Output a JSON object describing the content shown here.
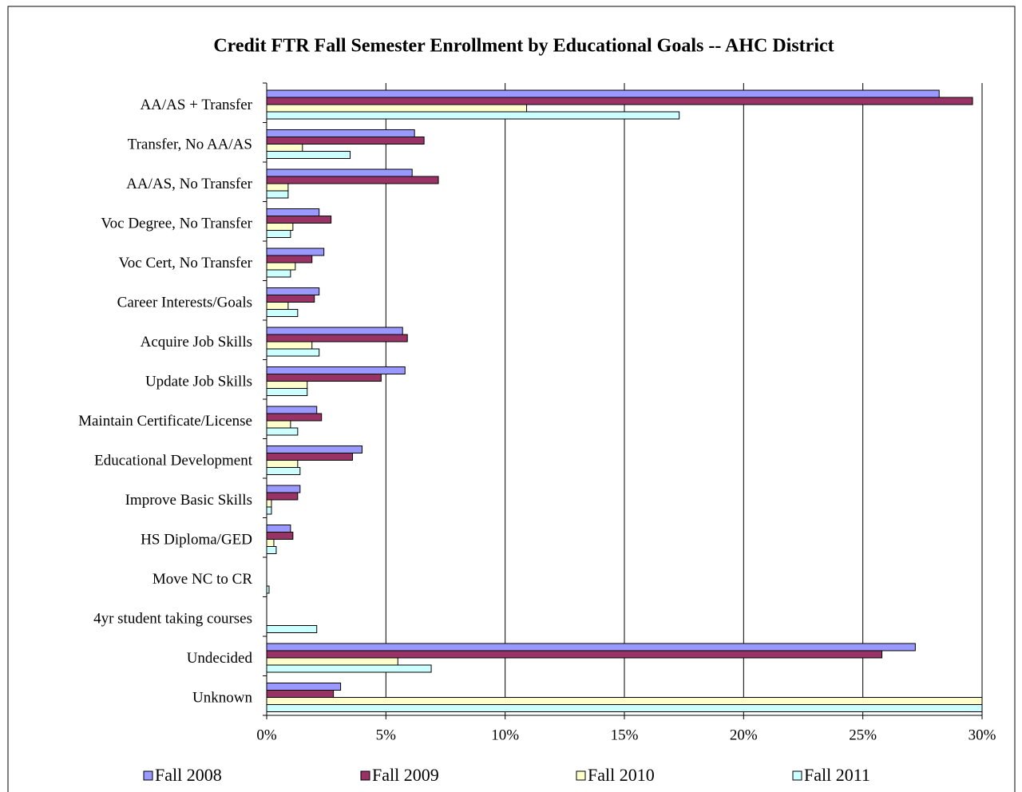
{
  "chart_data": {
    "type": "bar",
    "orientation": "horizontal",
    "title": "Credit FTR Fall Semester Enrollment by Educational Goals -- AHC District",
    "categories": [
      "AA/AS + Transfer",
      "Transfer, No AA/AS",
      "AA/AS, No Transfer",
      "Voc Degree, No Transfer",
      "Voc Cert, No Transfer",
      "Career Interests/Goals",
      "Acquire Job Skills",
      "Update Job Skills",
      "Maintain Certificate/License",
      "Educational Development",
      "Improve Basic Skills",
      "HS Diploma/GED",
      "Move NC to CR",
      "4yr student taking courses",
      "Undecided",
      "Unknown"
    ],
    "series": [
      {
        "name": "Fall 2008",
        "color": "#9999ff",
        "values": [
          28.2,
          6.2,
          6.1,
          2.2,
          2.4,
          2.2,
          5.7,
          5.8,
          2.1,
          4.0,
          1.4,
          1.0,
          0,
          0,
          27.2,
          3.1
        ]
      },
      {
        "name": "Fall 2009",
        "color": "#993366",
        "values": [
          29.6,
          6.6,
          7.2,
          2.7,
          1.9,
          2.0,
          5.9,
          4.8,
          2.3,
          3.6,
          1.3,
          1.1,
          0,
          0,
          25.8,
          2.8
        ]
      },
      {
        "name": "Fall 2010",
        "color": "#ffffcc",
        "values": [
          10.9,
          1.5,
          0.9,
          1.1,
          1.2,
          0.9,
          1.9,
          1.7,
          1.0,
          1.3,
          0.2,
          0.3,
          0,
          0,
          5.5,
          30
        ]
      },
      {
        "name": "Fall 2011",
        "color": "#ccffff",
        "values": [
          17.3,
          3.5,
          0.9,
          1.0,
          1.0,
          1.3,
          2.2,
          1.7,
          1.3,
          1.4,
          0.2,
          0.4,
          0.1,
          2.1,
          6.9,
          30
        ]
      }
    ],
    "xlim": [
      0,
      30
    ],
    "xticks": [
      {
        "value": 0,
        "label": "0%"
      },
      {
        "value": 5,
        "label": "5%"
      },
      {
        "value": 10,
        "label": "10%"
      },
      {
        "value": 15,
        "label": "15%"
      },
      {
        "value": 20,
        "label": "20%"
      },
      {
        "value": 25,
        "label": "25%"
      },
      {
        "value": 30,
        "label": "30%"
      }
    ],
    "grid": true,
    "legend": "bottom"
  }
}
